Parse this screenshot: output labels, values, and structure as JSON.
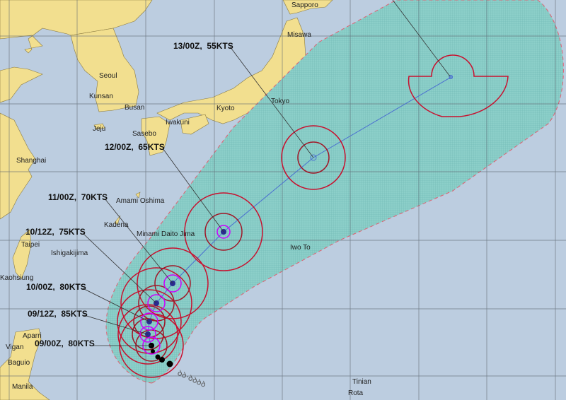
{
  "colors": {
    "ocean": "#bccde0",
    "land": "#f2df8f",
    "danger_area": "#8ccfc9",
    "wind_34kt": "#c8102e",
    "wind_50kt": "#a01828",
    "wind_64kt": "#cc00ff",
    "track": "#4a6fd0"
  },
  "cities": [
    "Sapporo",
    "Misawa",
    "Seoul",
    "Kunsan",
    "Busan",
    "Jeju",
    "Kyoto",
    "Tokyo",
    "Iwakuni",
    "Sasebo",
    "Shanghai",
    "Amami Oshima",
    "Kadena",
    "Minami Daito Jima",
    "Taipei",
    "Ishigakijima",
    "Kaohsiung",
    "Iwo To",
    "Aparri",
    "Vigan",
    "Baguio",
    "Manila",
    "Tinian",
    "Rota"
  ],
  "forecast": [
    {
      "label": "13/00Z,  55KTS"
    },
    {
      "label": "12/00Z,  65KTS"
    },
    {
      "label": "11/00Z,  70KTS"
    },
    {
      "label": "10/12Z,  75KTS"
    },
    {
      "label": "10/00Z,  80KTS"
    },
    {
      "label": "09/12Z,  85KTS"
    },
    {
      "label": "09/00Z,  80KTS"
    }
  ]
}
